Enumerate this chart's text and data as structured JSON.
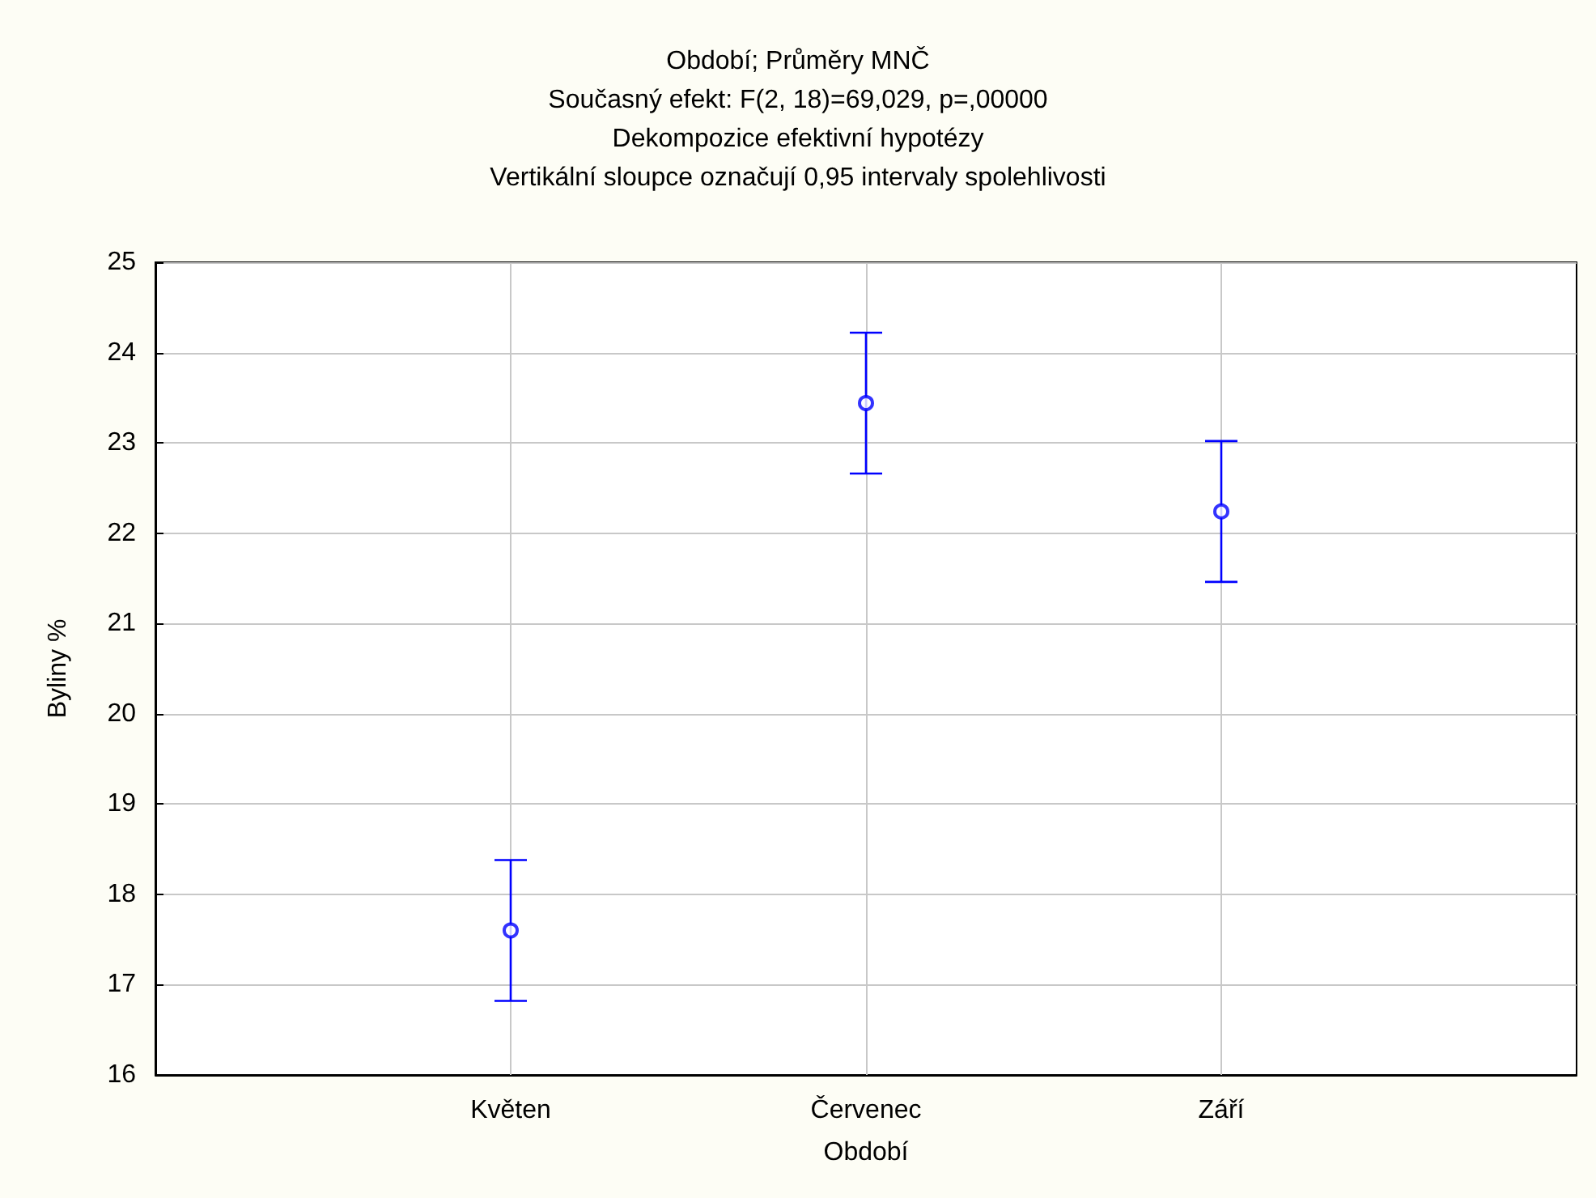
{
  "chart_data": {
    "type": "scatter",
    "title": "Období; Průměry MNČ",
    "subtitle": "Současný efekt: F(2, 18)=69,029, p=,00000",
    "annotations": [
      "Dekompozice efektivní hypotézy",
      "Vertikální sloupce označují 0,95 intervaly spolehlivosti"
    ],
    "xlabel": "Období",
    "ylabel": "Byliny %",
    "categories": [
      "Květen",
      "Červenec",
      "Září"
    ],
    "series": [
      {
        "color": "#0000ff",
        "values": [
          17.6,
          23.44,
          22.24
        ],
        "errors": [
          0.78,
          0.78,
          0.78
        ]
      }
    ],
    "ylim": [
      16,
      25
    ],
    "yticks": [
      16,
      17,
      18,
      19,
      20,
      21,
      22,
      23,
      24,
      25
    ],
    "grid": true,
    "marker": "circle"
  }
}
